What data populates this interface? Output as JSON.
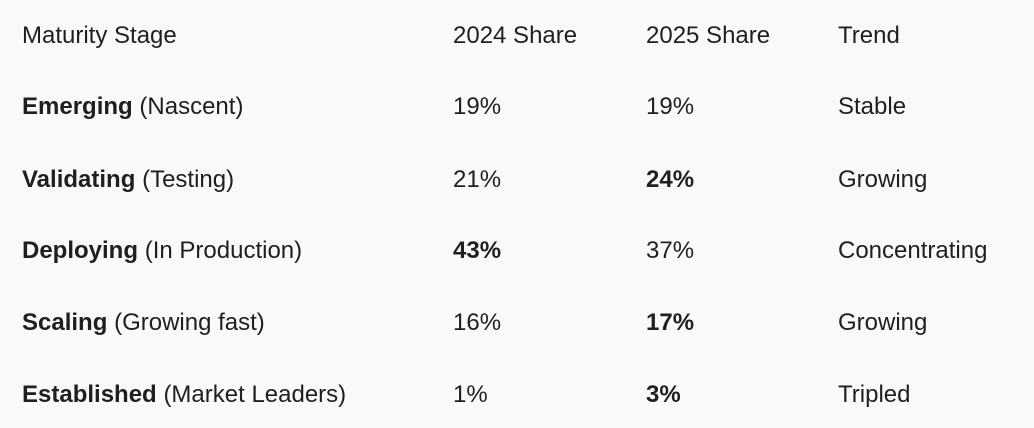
{
  "table": {
    "header": [
      "Maturity Stage",
      "2024 Share",
      "2025 Share",
      "Trend"
    ],
    "rows": [
      [
        {
          "name": "Emerging",
          "note": "(Nascent)"
        },
        {
          "text": "19%",
          "bold": false
        },
        {
          "text": "19%",
          "bold": false
        },
        {
          "text": "Stable",
          "bold": false
        }
      ],
      [
        {
          "name": "Validating",
          "note": "(Testing)"
        },
        {
          "text": "21%",
          "bold": false
        },
        {
          "text": "24%",
          "bold": true
        },
        {
          "text": "Growing",
          "bold": false
        }
      ],
      [
        {
          "name": "Deploying",
          "note": "(In Production)"
        },
        {
          "text": "43%",
          "bold": true
        },
        {
          "text": "37%",
          "bold": false
        },
        {
          "text": "Concentrating",
          "bold": false
        }
      ],
      [
        {
          "name": "Scaling",
          "note": "(Growing fast)"
        },
        {
          "text": "16%",
          "bold": false
        },
        {
          "text": "17%",
          "bold": true
        },
        {
          "text": "Growing",
          "bold": false
        }
      ],
      [
        {
          "name": "Established",
          "note": "(Market Leaders)"
        },
        {
          "text": "1%",
          "bold": false
        },
        {
          "text": "3%",
          "bold": true
        },
        {
          "text": "Tripled",
          "bold": false
        }
      ]
    ]
  }
}
